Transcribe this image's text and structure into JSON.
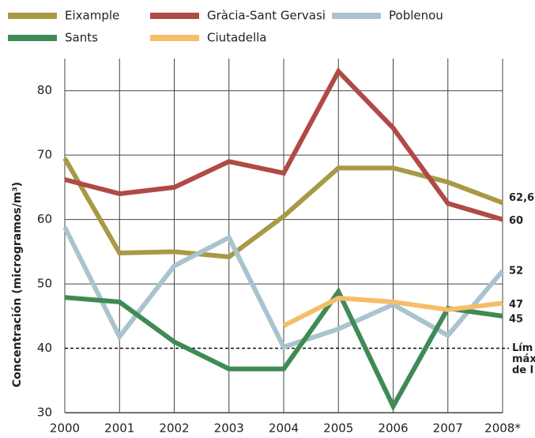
{
  "chart_data": {
    "type": "line",
    "y_label": "Concentración (microgramos/m³)",
    "categories": [
      "2000",
      "2001",
      "2002",
      "2003",
      "2004",
      "2005",
      "2006",
      "2007",
      "2008*"
    ],
    "series": [
      {
        "name": "Eixample",
        "color": "#a89a45",
        "values": [
          69.5,
          54.8,
          55,
          54.2,
          60.5,
          68,
          68,
          65.8,
          62.6
        ],
        "value_labels": [
          null,
          null,
          null,
          null,
          null,
          null,
          null,
          null,
          "62,6"
        ]
      },
      {
        "name": "Gràcia-Sant Gervasi",
        "color": "#b04a45",
        "values": [
          66.2,
          64,
          65,
          69,
          67.2,
          83,
          74.2,
          62.5,
          60
        ]
      },
      {
        "name": "Poblenou",
        "color": "#a9c3cf",
        "values": [
          58.8,
          41.8,
          52.8,
          57.2,
          40.2,
          43,
          46.8,
          42,
          52
        ]
      },
      {
        "name": "Sants",
        "color": "#3f8a55",
        "values": [
          47.9,
          47.2,
          41,
          36.8,
          36.8,
          48.8,
          31,
          46.2,
          45
        ]
      },
      {
        "name": "Ciutadella",
        "color": "#f6bd6a",
        "values": [
          null,
          null,
          null,
          null,
          43.5,
          47.8,
          47.2,
          46,
          47
        ]
      }
    ],
    "ylim": [
      30,
      85
    ],
    "yticks": [
      30,
      40,
      50,
      60,
      70,
      80
    ],
    "grid": true,
    "reference_line": {
      "value": 40,
      "label": [
        "Lím",
        "máx",
        "de l"
      ]
    }
  }
}
